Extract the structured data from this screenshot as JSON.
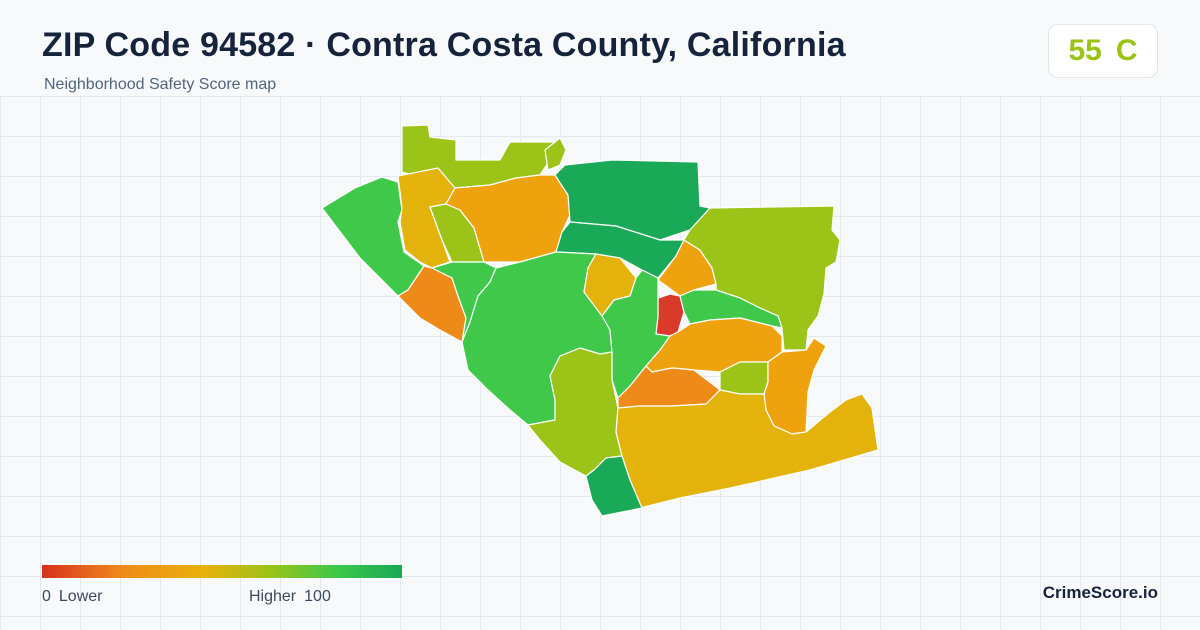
{
  "header": {
    "title": "ZIP Code 94582 · Contra Costa County, California",
    "subtitle": "Neighborhood Safety Score map"
  },
  "score_badge": {
    "score": "55",
    "grade": "C",
    "color": "#9ac415"
  },
  "legend": {
    "min_value": "0",
    "min_label": "Lower",
    "max_label": "Higher",
    "max_value": "100",
    "colors": [
      "#d7301f",
      "#ef8a1a",
      "#e8b20c",
      "#93c41a",
      "#3cc84a",
      "#19a857"
    ]
  },
  "brand": "CrimeScore.io",
  "map": {
    "region_colors": {
      "red": "#d93a2a",
      "orange": "#ee8a18",
      "orange_yellow": "#eda20e",
      "yellow": "#e3b30c",
      "yellow_green": "#9cc418",
      "green": "#3fc84a",
      "dark_green": "#1aa957"
    }
  }
}
